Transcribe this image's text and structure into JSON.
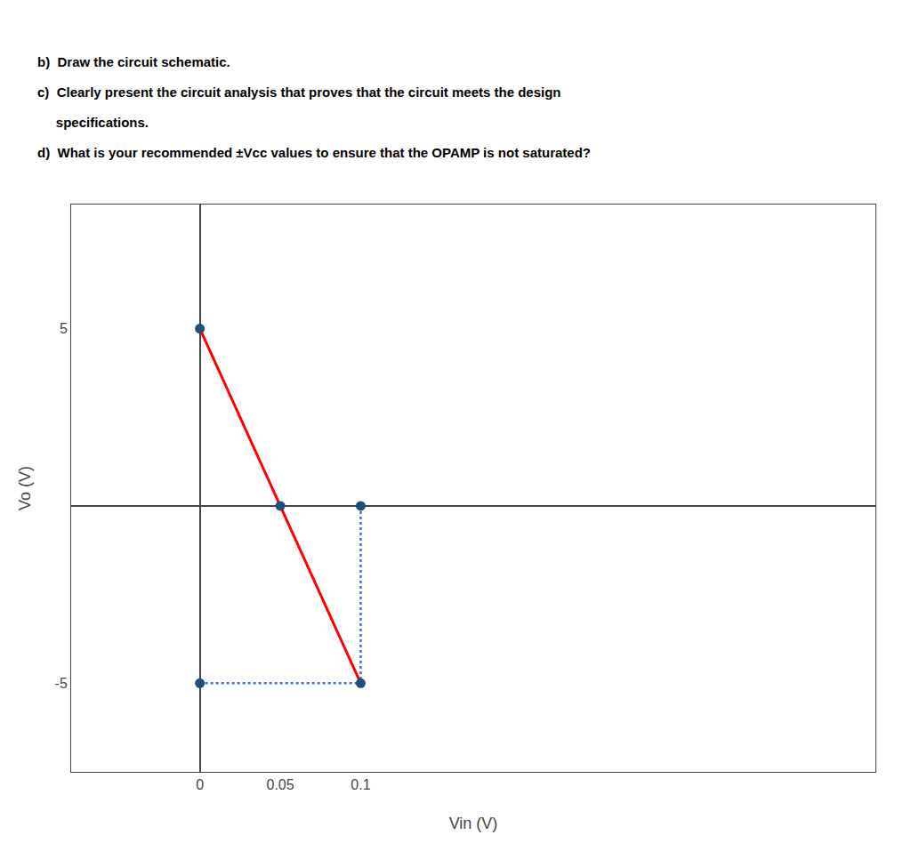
{
  "chart_data": {
    "type": "line",
    "annotations": [
      "b)  Draw the circuit schematic.",
      "c)  Clearly present the circuit analysis that proves that the circuit meets the design",
      "     specifications.",
      "d)  What is your recommended ±Vᴄᴄ values to ensure that the OPAMP is not saturated?"
    ],
    "x_label": "Vin (V)",
    "y_label": "Vo (V)",
    "series": [
      {
        "type": "line",
        "color": "#FF0000",
        "x": [
          0,
          0.1
        ],
        "values": [
          5,
          -5
        ]
      },
      {
        "type": "line",
        "line_style": "dotted",
        "color": "#4472C4",
        "x": [
          0.1,
          0.1
        ],
        "values": [
          0,
          -5
        ]
      },
      {
        "type": "line",
        "line_style": "dotted",
        "color": "#4472C4",
        "x": [
          0,
          0.1
        ],
        "values": [
          -5,
          -5
        ]
      },
      {
        "type": "scatter",
        "marker": "circle",
        "color": "#1F4E79",
        "x": [
          0,
          0.05,
          0.1,
          0.1,
          0
        ],
        "values": [
          5,
          0,
          0,
          -5,
          -5
        ]
      }
    ],
    "xlim": [
      -0.08,
      0.42
    ],
    "ylim": [
      -7.5,
      8.5
    ],
    "xticks": [
      0,
      0.05,
      0.1
    ],
    "yticks": [
      -5,
      5
    ],
    "grid": false
  }
}
